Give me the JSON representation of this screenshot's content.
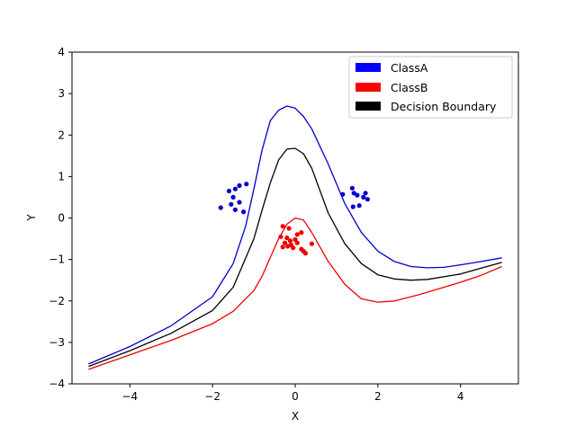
{
  "chart_data": {
    "type": "line",
    "title": "",
    "xlabel": "X",
    "ylabel": "Y",
    "xlim": [
      -5.4,
      5.4
    ],
    "ylim": [
      -4,
      4
    ],
    "xticks": [
      "−4",
      "−2",
      "0",
      "2",
      "4"
    ],
    "xtick_values": [
      -4,
      -2,
      0,
      2,
      4
    ],
    "yticks": [
      "−4",
      "−3",
      "−2",
      "−1",
      "0",
      "1",
      "2",
      "3",
      "4"
    ],
    "ytick_values": [
      -4,
      -3,
      -2,
      -1,
      0,
      1,
      2,
      3,
      4
    ],
    "grid": false,
    "legend_position": "top-right",
    "legend": [
      {
        "label": "ClassA",
        "color": "#0000ff"
      },
      {
        "label": "ClassB",
        "color": "#ff0000"
      },
      {
        "label": "Decision Boundary",
        "color": "#000000"
      }
    ],
    "series": [
      {
        "name": "ClassA",
        "type": "line",
        "color": "#0000cc",
        "x": [
          -5.0,
          -4.0,
          -3.0,
          -2.0,
          -1.5,
          -1.2,
          -1.0,
          -0.8,
          -0.6,
          -0.4,
          -0.2,
          0.0,
          0.2,
          0.4,
          0.8,
          1.2,
          1.6,
          2.0,
          2.4,
          2.8,
          3.2,
          3.6,
          4.0,
          4.5,
          5.0
        ],
        "y": [
          -3.52,
          -3.1,
          -2.6,
          -1.9,
          -1.1,
          -0.2,
          0.7,
          1.65,
          2.35,
          2.6,
          2.7,
          2.65,
          2.45,
          2.15,
          1.3,
          0.35,
          -0.35,
          -0.8,
          -1.05,
          -1.17,
          -1.2,
          -1.19,
          -1.13,
          -1.05,
          -0.96
        ]
      },
      {
        "name": "ClassB",
        "type": "line",
        "color": "#ee0000",
        "x": [
          -5.0,
          -4.0,
          -3.0,
          -2.0,
          -1.5,
          -1.0,
          -0.8,
          -0.6,
          -0.4,
          -0.2,
          0.0,
          0.2,
          0.4,
          0.8,
          1.2,
          1.6,
          2.0,
          2.4,
          3.0,
          3.5,
          4.0,
          4.5,
          5.0
        ],
        "y": [
          -3.65,
          -3.3,
          -2.95,
          -2.55,
          -2.25,
          -1.75,
          -1.4,
          -0.95,
          -0.5,
          -0.15,
          0.0,
          -0.05,
          -0.35,
          -1.05,
          -1.6,
          -1.95,
          -2.03,
          -2.0,
          -1.85,
          -1.7,
          -1.55,
          -1.38,
          -1.17
        ]
      },
      {
        "name": "Decision Boundary",
        "type": "line",
        "color": "#000000",
        "x": [
          -5.0,
          -4.0,
          -3.0,
          -2.0,
          -1.5,
          -1.0,
          -0.8,
          -0.6,
          -0.4,
          -0.2,
          0.0,
          0.2,
          0.4,
          0.8,
          1.2,
          1.6,
          2.0,
          2.4,
          2.8,
          3.2,
          4.0,
          4.5,
          5.0
        ],
        "y": [
          -3.58,
          -3.2,
          -2.78,
          -2.23,
          -1.67,
          -0.5,
          0.2,
          0.85,
          1.4,
          1.66,
          1.68,
          1.55,
          1.2,
          0.12,
          -0.62,
          -1.1,
          -1.37,
          -1.47,
          -1.5,
          -1.48,
          -1.35,
          -1.21,
          -1.07
        ]
      },
      {
        "name": "ClassA",
        "type": "scatter",
        "color": "#0000cc",
        "points": [
          [
            -1.6,
            0.65
          ],
          [
            -1.45,
            0.7
          ],
          [
            -1.35,
            0.78
          ],
          [
            -1.18,
            0.82
          ],
          [
            -1.5,
            0.5
          ],
          [
            -1.35,
            0.38
          ],
          [
            -1.55,
            0.33
          ],
          [
            -1.8,
            0.25
          ],
          [
            -1.45,
            0.2
          ],
          [
            -1.25,
            0.15
          ],
          [
            1.15,
            0.57
          ],
          [
            1.38,
            0.72
          ],
          [
            1.42,
            0.6
          ],
          [
            1.5,
            0.55
          ],
          [
            1.7,
            0.6
          ],
          [
            1.65,
            0.5
          ],
          [
            1.75,
            0.45
          ],
          [
            1.4,
            0.27
          ],
          [
            1.55,
            0.3
          ]
        ]
      },
      {
        "name": "ClassB",
        "type": "scatter",
        "color": "#ee0000",
        "points": [
          [
            -0.3,
            -0.2
          ],
          [
            -0.15,
            -0.25
          ],
          [
            -0.35,
            -0.45
          ],
          [
            -0.2,
            -0.48
          ],
          [
            0.05,
            -0.4
          ],
          [
            0.15,
            -0.35
          ],
          [
            0.0,
            -0.52
          ],
          [
            -0.25,
            -0.6
          ],
          [
            -0.1,
            -0.65
          ],
          [
            0.05,
            -0.6
          ],
          [
            -0.05,
            -0.72
          ],
          [
            -0.3,
            -0.7
          ],
          [
            -0.18,
            -0.68
          ],
          [
            0.15,
            -0.75
          ],
          [
            0.2,
            -0.8
          ],
          [
            0.25,
            -0.85
          ],
          [
            0.4,
            -0.62
          ],
          [
            -0.12,
            -0.55
          ]
        ]
      }
    ]
  }
}
